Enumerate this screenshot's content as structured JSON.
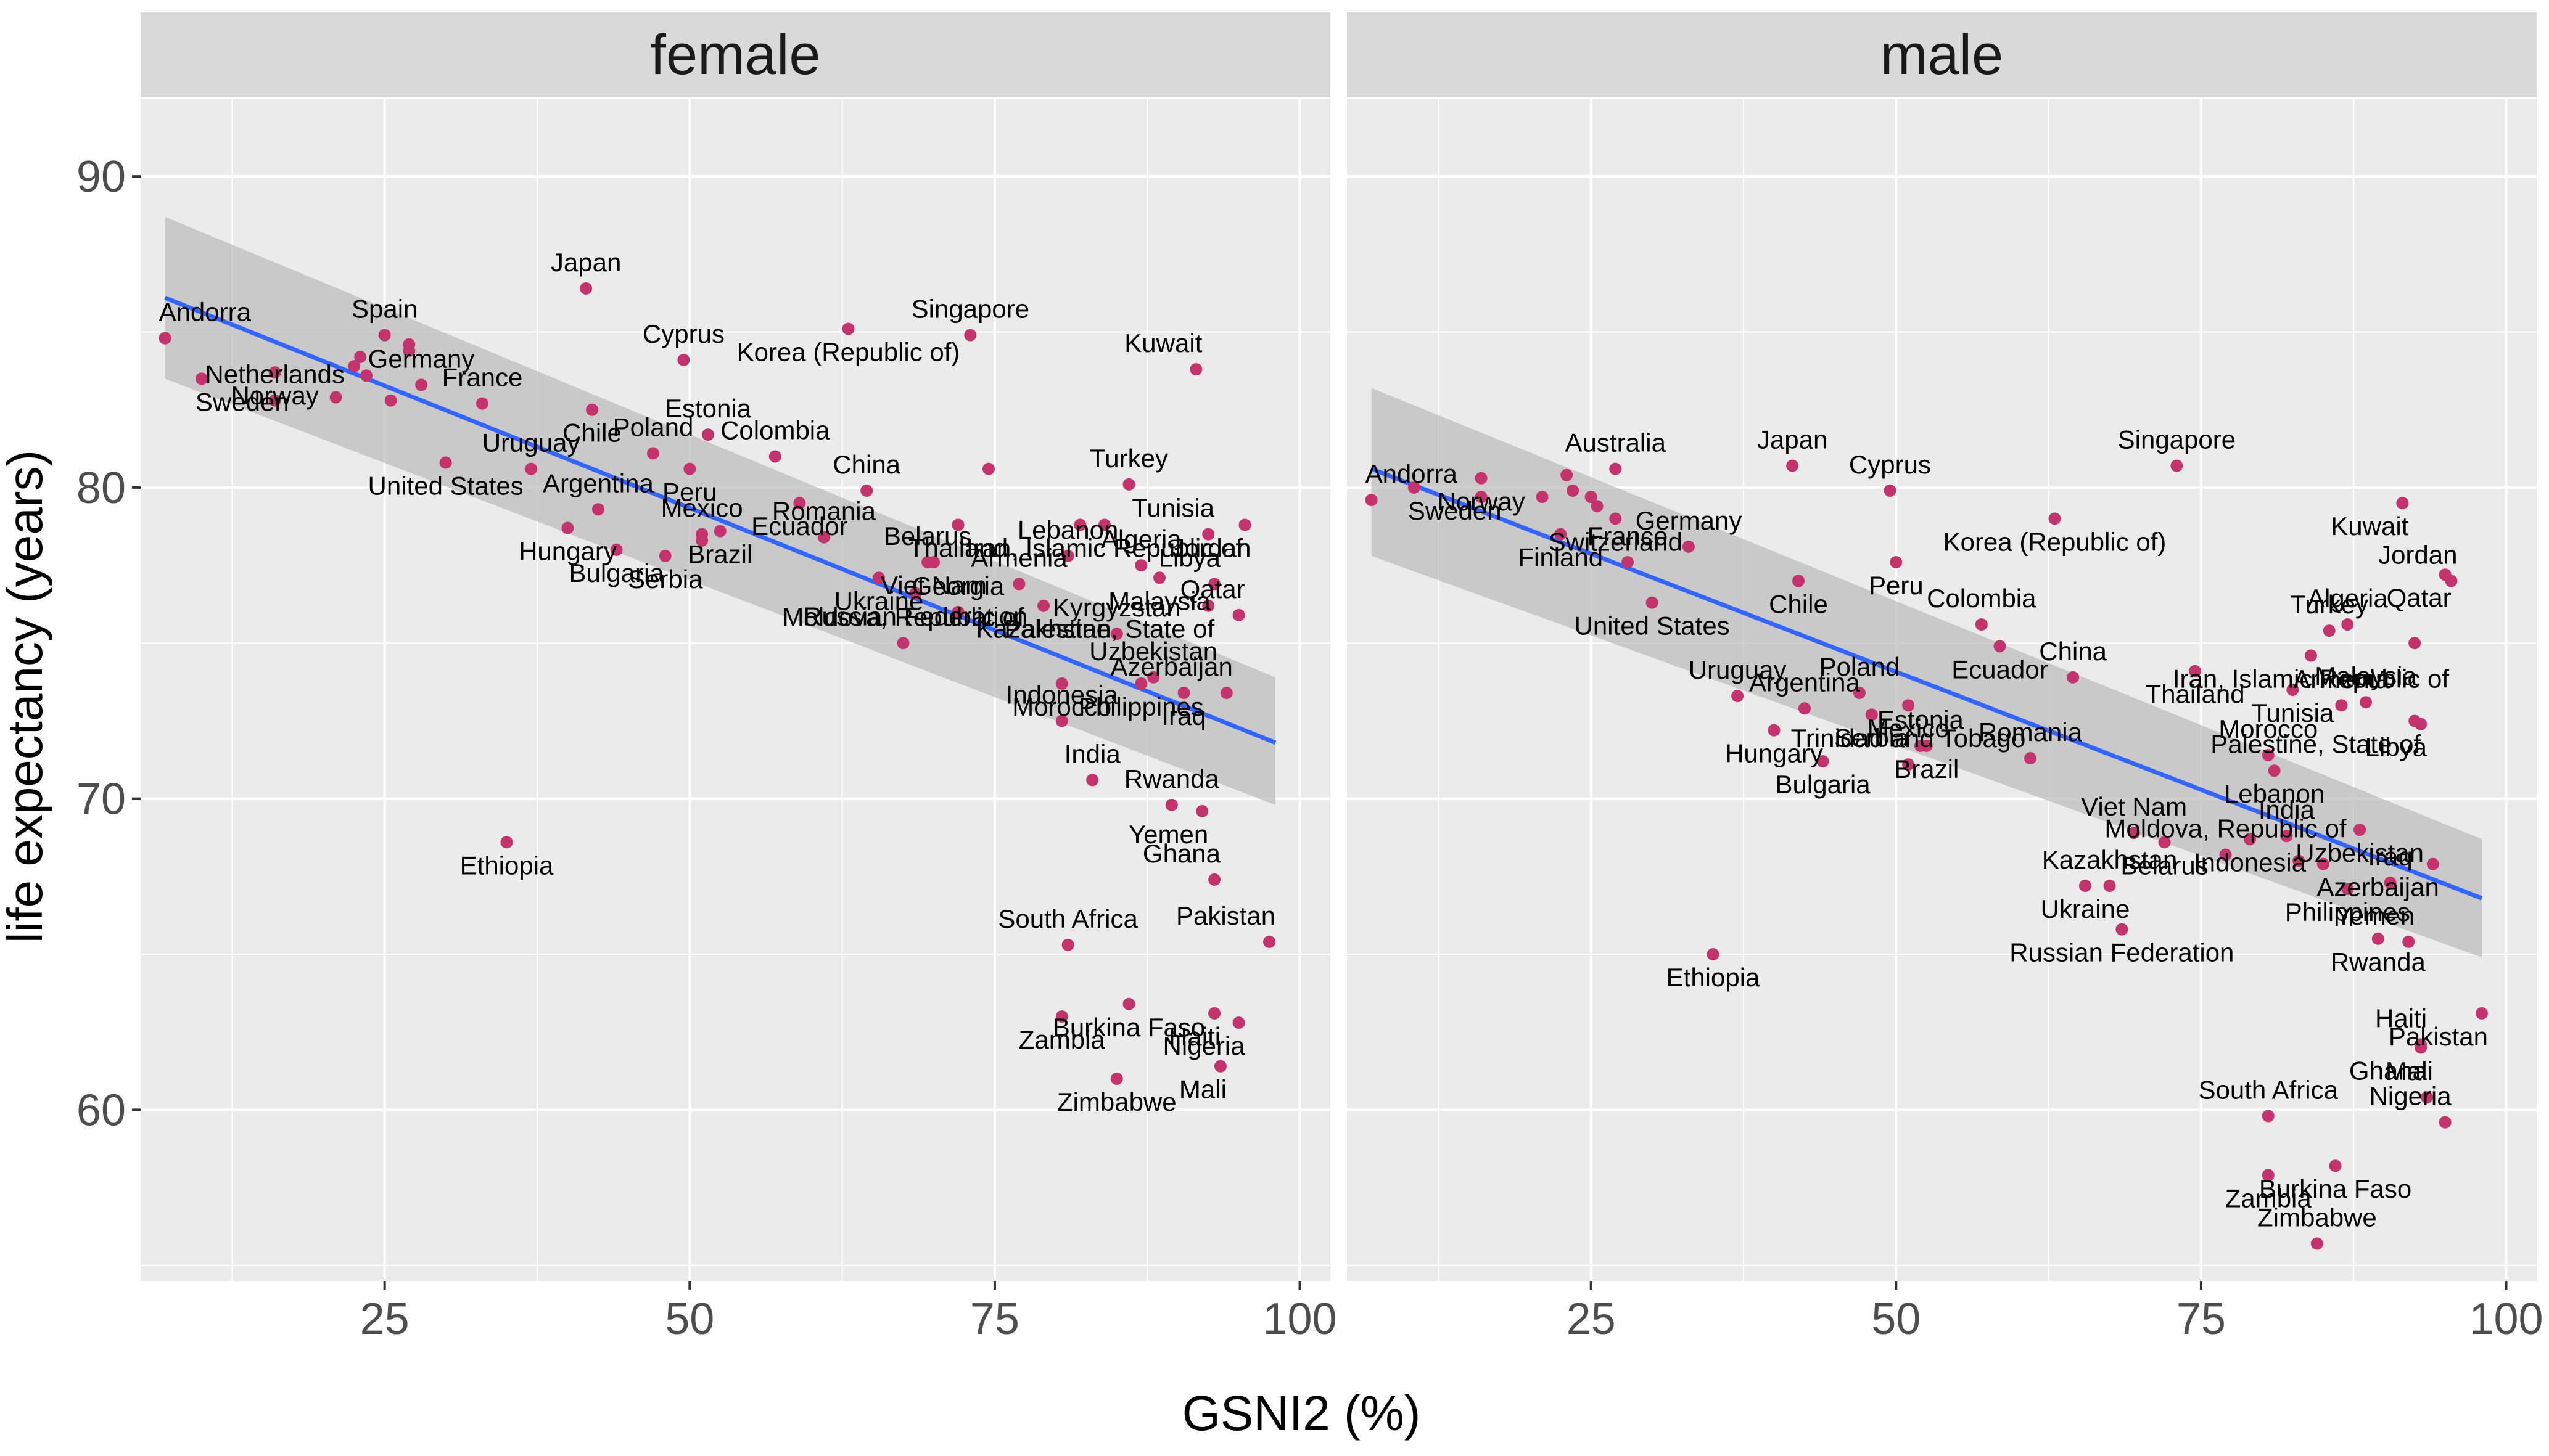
{
  "chart_data": {
    "type": "scatter",
    "facet_variable": "sex",
    "xlabel": "GSNI2 (%)",
    "ylabel": "life expectancy (years)",
    "xlim": [
      5,
      102.5
    ],
    "ylim": [
      54.5,
      92.5
    ],
    "xticks": [
      25,
      50,
      75,
      100
    ],
    "yticks": [
      60,
      70,
      80,
      90
    ],
    "grid": true,
    "legend": "none",
    "colors": {
      "point": "#C4336D",
      "smooth_line": "#3366FF",
      "ribbon": "#BDBDBD",
      "panel_bg": "#EBEBEB",
      "strip_bg": "#D9D9D9",
      "grid_major": "#FFFFFF"
    },
    "facets": [
      {
        "strip": "female",
        "fit": {
          "x": [
            7,
            98
          ],
          "y": [
            86.1,
            71.8
          ],
          "ci_low": [
            83.5,
            69.8
          ],
          "ci_high": [
            88.7,
            73.9
          ]
        },
        "points": [
          {
            "label": "Andorra",
            "x": 7,
            "y": 84.8
          },
          {
            "label": "Sweden",
            "x": 10,
            "y": 83.5
          },
          {
            "label": "Netherlands",
            "x": 16,
            "y": 82.8
          },
          {
            "label": "Norway",
            "x": 16,
            "y": 83.7
          },
          {
            "label": "",
            "x": 21,
            "y": 82.9
          },
          {
            "label": "",
            "x": 22.5,
            "y": 83.9
          },
          {
            "label": "",
            "x": 23,
            "y": 84.2
          },
          {
            "label": "",
            "x": 23.5,
            "y": 83.6
          },
          {
            "label": "Spain",
            "x": 25,
            "y": 84.9
          },
          {
            "label": "",
            "x": 25.5,
            "y": 82.8
          },
          {
            "label": "",
            "x": 27,
            "y": 84.6
          },
          {
            "label": "",
            "x": 27,
            "y": 84.4
          },
          {
            "label": "Germany",
            "x": 28,
            "y": 83.3
          },
          {
            "label": "United States",
            "x": 30,
            "y": 80.8
          },
          {
            "label": "France",
            "x": 33,
            "y": 82.7
          },
          {
            "label": "Ethiopia",
            "x": 35,
            "y": 68.6
          },
          {
            "label": "Uruguay",
            "x": 37,
            "y": 80.6
          },
          {
            "label": "Hungary",
            "x": 40,
            "y": 78.7
          },
          {
            "label": "Japan",
            "x": 41.5,
            "y": 86.4
          },
          {
            "label": "Chile",
            "x": 42,
            "y": 82.5
          },
          {
            "label": "Argentina",
            "x": 42.5,
            "y": 79.3
          },
          {
            "label": "Bulgaria",
            "x": 44,
            "y": 78.0
          },
          {
            "label": "Poland",
            "x": 47,
            "y": 81.1
          },
          {
            "label": "Serbia",
            "x": 48,
            "y": 77.8
          },
          {
            "label": "Cyprus",
            "x": 49.5,
            "y": 84.1
          },
          {
            "label": "Peru",
            "x": 50,
            "y": 80.6
          },
          {
            "label": "Mexico",
            "x": 51,
            "y": 78.5
          },
          {
            "label": "",
            "x": 51,
            "y": 78.3
          },
          {
            "label": "Estonia",
            "x": 51.5,
            "y": 81.7
          },
          {
            "label": "Brazil",
            "x": 52.5,
            "y": 78.6
          },
          {
            "label": "Colombia",
            "x": 57,
            "y": 81.0
          },
          {
            "label": "Ecuador",
            "x": 59,
            "y": 79.5
          },
          {
            "label": "Romania",
            "x": 61,
            "y": 78.4
          },
          {
            "label": "Korea (Republic of)",
            "x": 63,
            "y": 85.1
          },
          {
            "label": "China",
            "x": 64.5,
            "y": 79.9
          },
          {
            "label": "Ukraine",
            "x": 65.5,
            "y": 77.1
          },
          {
            "label": "Moldova, Republic of",
            "x": 67.5,
            "y": 75.0
          },
          {
            "label": "Russian Federation",
            "x": 68.5,
            "y": 76.6
          },
          {
            "label": "Belarus",
            "x": 69.5,
            "y": 77.6
          },
          {
            "label": "Viet Nam",
            "x": 70,
            "y": 77.6
          },
          {
            "label": "Georgia",
            "x": 72,
            "y": 76.0
          },
          {
            "label": "Thailand",
            "x": 72,
            "y": 78.8
          },
          {
            "label": "Singapore",
            "x": 73,
            "y": 84.9
          },
          {
            "label": "",
            "x": 74.5,
            "y": 80.6
          },
          {
            "label": "Armenia",
            "x": 77,
            "y": 76.9
          },
          {
            "label": "Kazakhstan",
            "x": 79,
            "y": 76.2
          },
          {
            "label": "Indonesia",
            "x": 80.5,
            "y": 72.5
          },
          {
            "label": "Morocco",
            "x": 80.5,
            "y": 73.7
          },
          {
            "label": "South Africa",
            "x": 81,
            "y": 65.3
          },
          {
            "label": "Zambia",
            "x": 80.5,
            "y": 63.0
          },
          {
            "label": "Lebanon",
            "x": 81,
            "y": 77.8
          },
          {
            "label": "",
            "x": 82,
            "y": 78.8
          },
          {
            "label": "India",
            "x": 83,
            "y": 70.6
          },
          {
            "label": "Iran, Islamic Republic of",
            "x": 84,
            "y": 78.8
          },
          {
            "label": "Kyrgyzstan",
            "x": 85,
            "y": 75.3
          },
          {
            "label": "Zimbabwe",
            "x": 85,
            "y": 61.0
          },
          {
            "label": "Turkey",
            "x": 86,
            "y": 80.1
          },
          {
            "label": "Burkina Faso",
            "x": 86,
            "y": 63.4
          },
          {
            "label": "Algeria",
            "x": 87,
            "y": 77.5
          },
          {
            "label": "Philippines",
            "x": 87,
            "y": 73.7
          },
          {
            "label": "Uzbekistan",
            "x": 88,
            "y": 73.9
          },
          {
            "label": "Malaysia",
            "x": 88.5,
            "y": 77.1
          },
          {
            "label": "Rwanda",
            "x": 89.5,
            "y": 69.8
          },
          {
            "label": "Iraq",
            "x": 90.5,
            "y": 73.4
          },
          {
            "label": "Kuwait",
            "x": 91.5,
            "y": 83.8
          },
          {
            "label": "Yemen",
            "x": 92,
            "y": 69.6
          },
          {
            "label": "Tunisia",
            "x": 92.5,
            "y": 78.5
          },
          {
            "label": "Palestine, State of",
            "x": 92.5,
            "y": 76.2
          },
          {
            "label": "Ghana",
            "x": 93,
            "y": 67.4
          },
          {
            "label": "Haiti",
            "x": 93,
            "y": 63.1
          },
          {
            "label": "Libya",
            "x": 93,
            "y": 76.9
          },
          {
            "label": "Mali",
            "x": 93.5,
            "y": 61.4
          },
          {
            "label": "Azerbaijan",
            "x": 94,
            "y": 73.4
          },
          {
            "label": "Nigeria",
            "x": 95,
            "y": 62.8
          },
          {
            "label": "Qatar",
            "x": 95,
            "y": 75.9
          },
          {
            "label": "Jordan",
            "x": 95.5,
            "y": 78.8
          },
          {
            "label": "Pakistan",
            "x": 97.5,
            "y": 65.4
          }
        ]
      },
      {
        "strip": "male",
        "fit": {
          "x": [
            7,
            98
          ],
          "y": [
            80.6,
            66.8
          ],
          "ci_low": [
            77.8,
            64.9
          ],
          "ci_high": [
            83.2,
            68.7
          ]
        },
        "points": [
          {
            "label": "Andorra",
            "x": 7,
            "y": 79.6
          },
          {
            "label": "Sweden",
            "x": 10.5,
            "y": 80.0
          },
          {
            "label": "",
            "x": 16,
            "y": 79.7
          },
          {
            "label": "Norway",
            "x": 16,
            "y": 80.3
          },
          {
            "label": "",
            "x": 21,
            "y": 79.7
          },
          {
            "label": "Finland",
            "x": 22.5,
            "y": 78.5
          },
          {
            "label": "",
            "x": 23,
            "y": 80.4
          },
          {
            "label": "",
            "x": 23.5,
            "y": 79.9
          },
          {
            "label": "",
            "x": 25,
            "y": 79.7
          },
          {
            "label": "",
            "x": 25.5,
            "y": 79.4
          },
          {
            "label": "Australia",
            "x": 27,
            "y": 80.6
          },
          {
            "label": "Switzerland",
            "x": 27,
            "y": 79.0
          },
          {
            "label": "France",
            "x": 28,
            "y": 77.6
          },
          {
            "label": "United States",
            "x": 30,
            "y": 76.3
          },
          {
            "label": "Germany",
            "x": 33,
            "y": 78.1
          },
          {
            "label": "Ethiopia",
            "x": 35,
            "y": 65.0
          },
          {
            "label": "Uruguay",
            "x": 37,
            "y": 73.3
          },
          {
            "label": "Hungary",
            "x": 40,
            "y": 72.2
          },
          {
            "label": "Japan",
            "x": 41.5,
            "y": 80.7
          },
          {
            "label": "Chile",
            "x": 42,
            "y": 77.0
          },
          {
            "label": "Argentina",
            "x": 42.5,
            "y": 72.9
          },
          {
            "label": "Bulgaria",
            "x": 44,
            "y": 71.2
          },
          {
            "label": "Poland",
            "x": 47,
            "y": 73.4
          },
          {
            "label": "Serbia",
            "x": 48,
            "y": 72.7
          },
          {
            "label": "Cyprus",
            "x": 49.5,
            "y": 79.9
          },
          {
            "label": "Peru",
            "x": 50,
            "y": 77.6
          },
          {
            "label": "Trinidad and Tobago",
            "x": 51,
            "y": 71.1
          },
          {
            "label": "Mexico",
            "x": 51,
            "y": 73.0
          },
          {
            "label": "Estonia",
            "x": 52,
            "y": 71.7
          },
          {
            "label": "Brazil",
            "x": 52.5,
            "y": 71.7
          },
          {
            "label": "Colombia",
            "x": 57,
            "y": 75.6
          },
          {
            "label": "Ecuador",
            "x": 58.5,
            "y": 74.9
          },
          {
            "label": "Romania",
            "x": 61,
            "y": 71.3
          },
          {
            "label": "Korea (Republic of)",
            "x": 63,
            "y": 79.0
          },
          {
            "label": "China",
            "x": 64.5,
            "y": 73.9
          },
          {
            "label": "Ukraine",
            "x": 65.5,
            "y": 67.2
          },
          {
            "label": "Kazakhstan",
            "x": 67.5,
            "y": 67.2
          },
          {
            "label": "Russian Federation",
            "x": 68.5,
            "y": 65.8
          },
          {
            "label": "Viet Nam",
            "x": 69.5,
            "y": 68.9
          },
          {
            "label": "Belarus",
            "x": 72,
            "y": 68.6
          },
          {
            "label": "Singapore",
            "x": 73,
            "y": 80.7
          },
          {
            "label": "Thailand",
            "x": 74.5,
            "y": 74.1
          },
          {
            "label": "Moldova, Republic of",
            "x": 77,
            "y": 68.2
          },
          {
            "label": "Indonesia",
            "x": 79,
            "y": 68.7
          },
          {
            "label": "South Africa",
            "x": 80.5,
            "y": 59.8
          },
          {
            "label": "Zambia",
            "x": 80.5,
            "y": 57.9
          },
          {
            "label": "Morocco",
            "x": 80.5,
            "y": 71.4
          },
          {
            "label": "Lebanon",
            "x": 81,
            "y": 70.9
          },
          {
            "label": "India",
            "x": 82,
            "y": 68.8
          },
          {
            "label": "Tunisia",
            "x": 82.5,
            "y": 73.5
          },
          {
            "label": "",
            "x": 83,
            "y": 68.0
          },
          {
            "label": "Iran, Islamic Republic of",
            "x": 84,
            "y": 74.6
          },
          {
            "label": "Zimbabwe",
            "x": 84.5,
            "y": 55.7
          },
          {
            "label": "",
            "x": 85,
            "y": 67.9
          },
          {
            "label": "Turkey",
            "x": 85.5,
            "y": 75.4
          },
          {
            "label": "Burkina Faso",
            "x": 86,
            "y": 58.2
          },
          {
            "label": "Armenia",
            "x": 86.5,
            "y": 73.0
          },
          {
            "label": "Philippines",
            "x": 87,
            "y": 67.1
          },
          {
            "label": "Algeria",
            "x": 87,
            "y": 75.6
          },
          {
            "label": "Uzbekistan",
            "x": 88,
            "y": 69.0
          },
          {
            "label": "Malaysia",
            "x": 88.5,
            "y": 73.1
          },
          {
            "label": "Rwanda",
            "x": 89.5,
            "y": 65.5
          },
          {
            "label": "Iraq",
            "x": 90.5,
            "y": 67.3
          },
          {
            "label": "Kuwait",
            "x": 91.5,
            "y": 79.5
          },
          {
            "label": "Yemen",
            "x": 92,
            "y": 65.4
          },
          {
            "label": "Palestine, State of",
            "x": 92.5,
            "y": 72.5
          },
          {
            "label": "",
            "x": 92.5,
            "y": 75.0
          },
          {
            "label": "Ghana",
            "x": 93,
            "y": 62.0
          },
          {
            "label": "Haiti",
            "x": 93,
            "y": 62.1
          },
          {
            "label": "Libya",
            "x": 93,
            "y": 72.4
          },
          {
            "label": "Mali",
            "x": 93.5,
            "y": 60.4
          },
          {
            "label": "Azerbaijan",
            "x": 94,
            "y": 67.9
          },
          {
            "label": "Nigeria",
            "x": 95,
            "y": 59.6
          },
          {
            "label": "Qatar",
            "x": 95,
            "y": 77.2
          },
          {
            "label": "Jordan",
            "x": 95.5,
            "y": 77.0
          },
          {
            "label": "Pakistan",
            "x": 98,
            "y": 63.1
          }
        ]
      }
    ]
  }
}
